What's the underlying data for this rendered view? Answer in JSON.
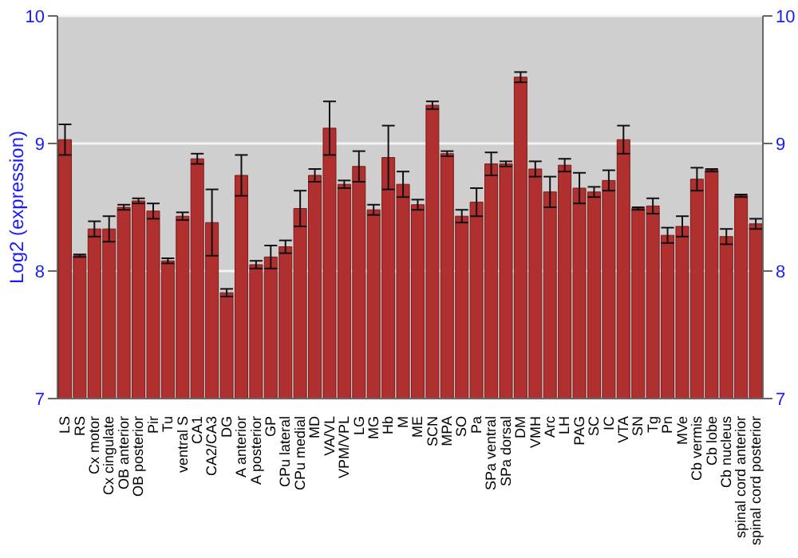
{
  "chart_data": {
    "type": "bar",
    "ylabel": "Log2 (expression)",
    "categories": [
      "LS",
      "RS",
      "Cx motor",
      "Cx cingulate",
      "OB anterior",
      "OB posterior",
      "Pir",
      "Tu",
      "ventral S",
      "CA1",
      "CA2/CA3",
      "DG",
      "A anterior",
      "A posterior",
      "GP",
      "CPu lateral",
      "CPu medial",
      "MD",
      "VA/VL",
      "VPM/VPL",
      "LG",
      "MG",
      "Hb",
      "M",
      "ME",
      "SCN",
      "MPA",
      "SO",
      "Pa",
      "SPa ventral",
      "SPa dorsal",
      "DM",
      "VMH",
      "Arc",
      "LH",
      "PAG",
      "SC",
      "IC",
      "VTA",
      "SN",
      "Tg",
      "Pn",
      "MVe",
      "Cb vermis",
      "Cb lobe",
      "Cb nucleus",
      "spinal cord anterior",
      "spinal cord posterior"
    ],
    "series": [
      {
        "color": "#b03030",
        "values": [
          9.03,
          8.12,
          8.33,
          8.33,
          8.5,
          8.55,
          8.47,
          8.08,
          8.43,
          8.88,
          8.38,
          7.83,
          8.75,
          8.05,
          8.11,
          8.19,
          8.49,
          8.75,
          9.12,
          8.68,
          8.82,
          8.48,
          8.89,
          8.68,
          8.52,
          9.3,
          8.92,
          8.43,
          8.54,
          8.84,
          8.84,
          9.52,
          8.8,
          8.62,
          8.83,
          8.65,
          8.62,
          8.71,
          9.03,
          8.49,
          8.51,
          8.28,
          8.35,
          8.72,
          8.79,
          8.27,
          8.59,
          8.37
        ],
        "errors": [
          0.12,
          0.01,
          0.06,
          0.1,
          0.02,
          0.02,
          0.06,
          0.02,
          0.03,
          0.04,
          0.26,
          0.03,
          0.16,
          0.03,
          0.09,
          0.05,
          0.14,
          0.05,
          0.21,
          0.03,
          0.12,
          0.04,
          0.25,
          0.1,
          0.04,
          0.03,
          0.02,
          0.05,
          0.11,
          0.09,
          0.02,
          0.04,
          0.06,
          0.12,
          0.05,
          0.12,
          0.04,
          0.08,
          0.11,
          0.01,
          0.06,
          0.06,
          0.08,
          0.09,
          0.01,
          0.06,
          0.01,
          0.04
        ]
      }
    ],
    "ylim": [
      7,
      10
    ],
    "yticks": [
      7,
      8,
      9,
      10
    ],
    "y2lim": [
      7,
      10
    ],
    "y2ticks": [
      7,
      8,
      9,
      10
    ],
    "grid": "y"
  }
}
